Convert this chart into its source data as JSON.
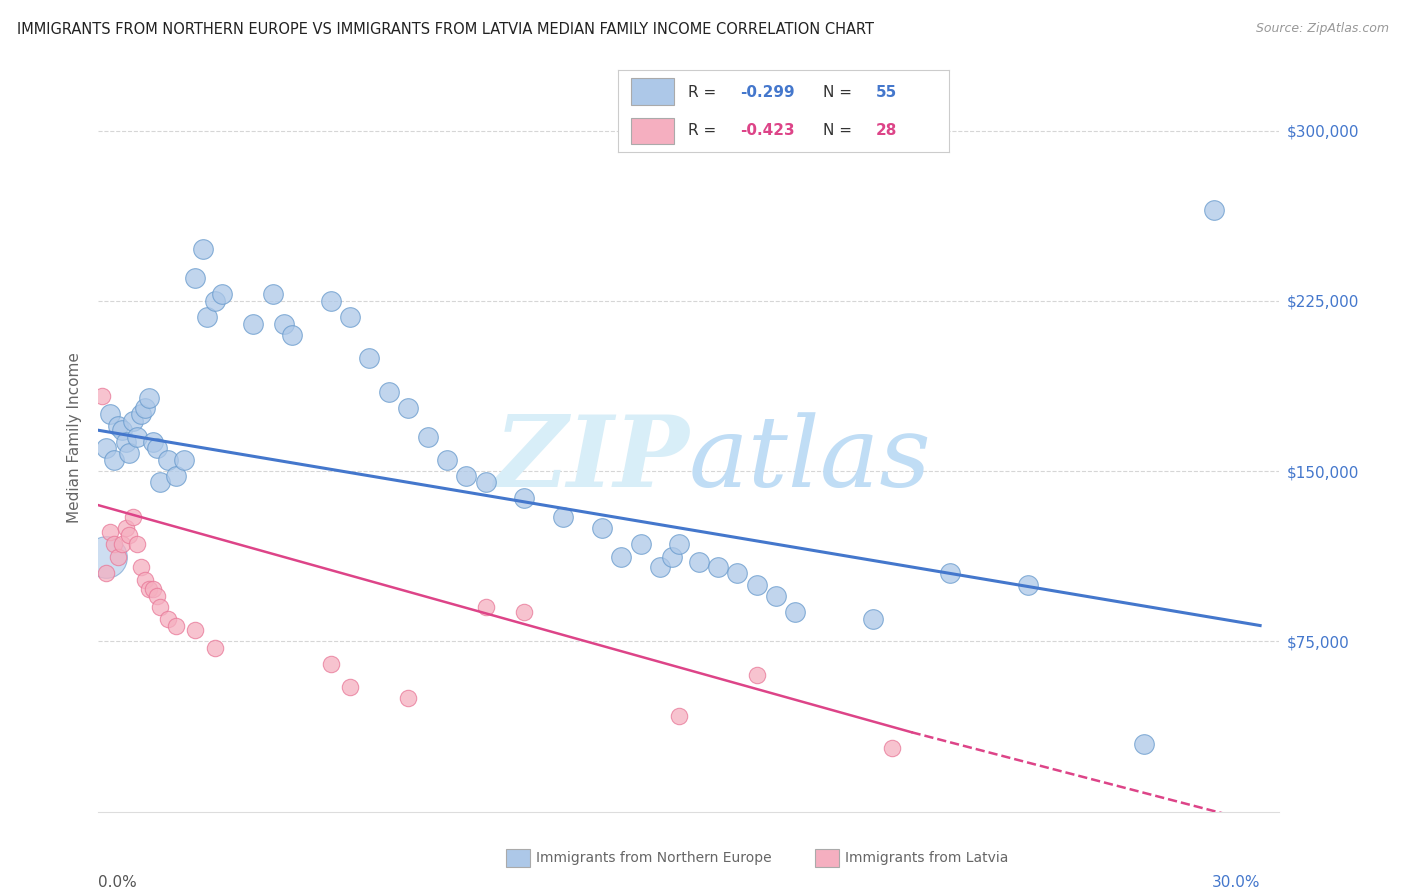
{
  "title": "IMMIGRANTS FROM NORTHERN EUROPE VS IMMIGRANTS FROM LATVIA MEDIAN FAMILY INCOME CORRELATION CHART",
  "source": "Source: ZipAtlas.com",
  "ylabel": "Median Family Income",
  "yticks": [
    75000,
    150000,
    225000,
    300000
  ],
  "ytick_labels": [
    "$75,000",
    "$150,000",
    "$225,000",
    "$300,000"
  ],
  "xlim": [
    0.0,
    0.305
  ],
  "ylim": [
    0,
    330000
  ],
  "x_left_label": "0.0%",
  "x_right_label": "30.0%",
  "legend_blue_R": "-0.299",
  "legend_blue_N": "55",
  "legend_pink_R": "-0.423",
  "legend_pink_N": "28",
  "legend1_label": "Immigrants from Northern Europe",
  "legend2_label": "Immigrants from Latvia",
  "blue_fill": "#adc8e8",
  "pink_fill": "#f5afc0",
  "blue_edge": "#6699cc",
  "pink_edge": "#e87898",
  "blue_line": "#4477cc",
  "pink_line": "#dd4488",
  "grid_color": "#cccccc",
  "blue_pts": [
    [
      0.002,
      160000
    ],
    [
      0.003,
      175000
    ],
    [
      0.004,
      155000
    ],
    [
      0.005,
      170000
    ],
    [
      0.006,
      168000
    ],
    [
      0.007,
      163000
    ],
    [
      0.008,
      158000
    ],
    [
      0.009,
      172000
    ],
    [
      0.01,
      165000
    ],
    [
      0.011,
      175000
    ],
    [
      0.012,
      178000
    ],
    [
      0.013,
      182000
    ],
    [
      0.014,
      163000
    ],
    [
      0.015,
      160000
    ],
    [
      0.016,
      145000
    ],
    [
      0.018,
      155000
    ],
    [
      0.02,
      148000
    ],
    [
      0.022,
      155000
    ],
    [
      0.025,
      235000
    ],
    [
      0.027,
      248000
    ],
    [
      0.028,
      218000
    ],
    [
      0.03,
      225000
    ],
    [
      0.032,
      228000
    ],
    [
      0.04,
      215000
    ],
    [
      0.045,
      228000
    ],
    [
      0.048,
      215000
    ],
    [
      0.05,
      210000
    ],
    [
      0.06,
      225000
    ],
    [
      0.065,
      218000
    ],
    [
      0.07,
      200000
    ],
    [
      0.075,
      185000
    ],
    [
      0.08,
      178000
    ],
    [
      0.085,
      165000
    ],
    [
      0.09,
      155000
    ],
    [
      0.095,
      148000
    ],
    [
      0.1,
      145000
    ],
    [
      0.11,
      138000
    ],
    [
      0.12,
      130000
    ],
    [
      0.13,
      125000
    ],
    [
      0.135,
      112000
    ],
    [
      0.14,
      118000
    ],
    [
      0.145,
      108000
    ],
    [
      0.148,
      112000
    ],
    [
      0.15,
      118000
    ],
    [
      0.155,
      110000
    ],
    [
      0.16,
      108000
    ],
    [
      0.165,
      105000
    ],
    [
      0.17,
      100000
    ],
    [
      0.175,
      95000
    ],
    [
      0.18,
      88000
    ],
    [
      0.2,
      85000
    ],
    [
      0.22,
      105000
    ],
    [
      0.24,
      100000
    ],
    [
      0.27,
      30000
    ],
    [
      0.288,
      265000
    ]
  ],
  "pink_pts": [
    [
      0.001,
      183000
    ],
    [
      0.002,
      105000
    ],
    [
      0.003,
      123000
    ],
    [
      0.004,
      118000
    ],
    [
      0.005,
      112000
    ],
    [
      0.006,
      118000
    ],
    [
      0.007,
      125000
    ],
    [
      0.008,
      122000
    ],
    [
      0.009,
      130000
    ],
    [
      0.01,
      118000
    ],
    [
      0.011,
      108000
    ],
    [
      0.012,
      102000
    ],
    [
      0.013,
      98000
    ],
    [
      0.014,
      98000
    ],
    [
      0.015,
      95000
    ],
    [
      0.016,
      90000
    ],
    [
      0.018,
      85000
    ],
    [
      0.02,
      82000
    ],
    [
      0.025,
      80000
    ],
    [
      0.03,
      72000
    ],
    [
      0.06,
      65000
    ],
    [
      0.065,
      55000
    ],
    [
      0.08,
      50000
    ],
    [
      0.1,
      90000
    ],
    [
      0.11,
      88000
    ],
    [
      0.15,
      42000
    ],
    [
      0.17,
      60000
    ],
    [
      0.205,
      28000
    ]
  ]
}
